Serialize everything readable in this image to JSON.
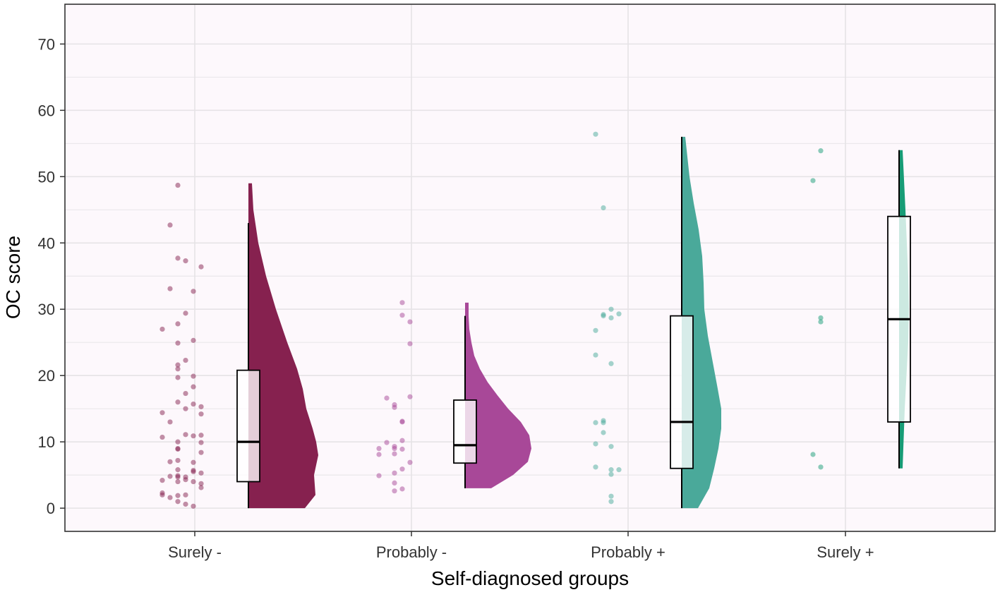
{
  "chart_data": {
    "type": "raincloud",
    "title": "",
    "xlabel": "Self-diagnosed groups",
    "ylabel": "OC score",
    "ylim": [
      -3.5,
      76
    ],
    "yticks": [
      0,
      10,
      20,
      30,
      40,
      50,
      60,
      70
    ],
    "grid": true,
    "categories": [
      "Surely -",
      "Probably -",
      "Probably +",
      "Surely +"
    ],
    "colors": {
      "surely_minus": "#86214f",
      "probably_minus": "#a84898",
      "probably_plus": "#4aa99a",
      "surely_plus": "#179c76",
      "background": "#fdf8fc",
      "grid": "#e6e3e6"
    },
    "groups": [
      {
        "name": "Surely -",
        "color": "#86214f",
        "box": {
          "min": 0,
          "q1": 4,
          "median": 10,
          "q3": 20.8,
          "max": 43
        },
        "violin": {
          "min": 0,
          "max": 49,
          "density": [
            [
              0,
              8
            ],
            [
              2,
              9.5
            ],
            [
              5,
              9.3
            ],
            [
              8,
              9.9
            ],
            [
              10,
              9.6
            ],
            [
              12,
              9.1
            ],
            [
              15,
              8.2
            ],
            [
              18,
              7.7
            ],
            [
              21,
              6.9
            ],
            [
              25,
              5.5
            ],
            [
              30,
              3.9
            ],
            [
              35,
              2.5
            ],
            [
              40,
              1.4
            ],
            [
              45,
              0.7
            ],
            [
              49,
              0.5
            ]
          ]
        },
        "points": [
          [
            2,
            48.7
          ],
          [
            1,
            42.7
          ],
          [
            2,
            37.7
          ],
          [
            3,
            37.3
          ],
          [
            1,
            33.1
          ],
          [
            5,
            36.4
          ],
          [
            4,
            32.7
          ],
          [
            3,
            29.4
          ],
          [
            0,
            27
          ],
          [
            2,
            27.8
          ],
          [
            2,
            24.9
          ],
          [
            4,
            25.3
          ],
          [
            3,
            22.3
          ],
          [
            2,
            21.6
          ],
          [
            2,
            21
          ],
          [
            2,
            19.7
          ],
          [
            4,
            19.9
          ],
          [
            4,
            18.3
          ],
          [
            3,
            17.3
          ],
          [
            2,
            16
          ],
          [
            0,
            14.4
          ],
          [
            1,
            13
          ],
          [
            3,
            15
          ],
          [
            4,
            15.7
          ],
          [
            5,
            15.3
          ],
          [
            5,
            14.2
          ],
          [
            3,
            11.1
          ],
          [
            4,
            10.9
          ],
          [
            5,
            11
          ],
          [
            0,
            10.7
          ],
          [
            2,
            10
          ],
          [
            5,
            9.9
          ],
          [
            2,
            9
          ],
          [
            2,
            8.9
          ],
          [
            5,
            8.4
          ],
          [
            1,
            7
          ],
          [
            2,
            7.2
          ],
          [
            4,
            6.9
          ],
          [
            2,
            5.8
          ],
          [
            4,
            5.7
          ],
          [
            4,
            5.5
          ],
          [
            5,
            5.3
          ],
          [
            0,
            4.2
          ],
          [
            1,
            4.8
          ],
          [
            2,
            4.9
          ],
          [
            2,
            4.7
          ],
          [
            3,
            4.7
          ],
          [
            2,
            4
          ],
          [
            3,
            4.3
          ],
          [
            4,
            4
          ],
          [
            5,
            3.7
          ],
          [
            5,
            3.1
          ],
          [
            0,
            2.3
          ],
          [
            0,
            2
          ],
          [
            2,
            1.9
          ],
          [
            3,
            2
          ],
          [
            1,
            1.6
          ],
          [
            2,
            1
          ],
          [
            3,
            0.6
          ],
          [
            4,
            0.3
          ]
        ]
      },
      {
        "name": "Probably -",
        "color": "#a84898",
        "box": {
          "min": 3,
          "q1": 6.8,
          "median": 9.5,
          "q3": 16.3,
          "max": 29
        },
        "violin": {
          "min": 3,
          "max": 31,
          "density": [
            [
              3,
              3.7
            ],
            [
              5,
              6.8
            ],
            [
              7,
              8.9
            ],
            [
              9,
              9.4
            ],
            [
              11,
              9.1
            ],
            [
              13,
              7.9
            ],
            [
              15,
              6.1
            ],
            [
              17,
              4.6
            ],
            [
              19,
              3.2
            ],
            [
              21,
              2.1
            ],
            [
              23,
              1.3
            ],
            [
              25,
              0.9
            ],
            [
              27,
              0.6
            ],
            [
              29,
              0.5
            ],
            [
              31,
              0.5
            ]
          ]
        },
        "points": [
          [
            3,
            31
          ],
          [
            3,
            29.1
          ],
          [
            4,
            28.1
          ],
          [
            4,
            24.8
          ],
          [
            4,
            16.8
          ],
          [
            1,
            16.6
          ],
          [
            2,
            15.6
          ],
          [
            2,
            15.2
          ],
          [
            3,
            13
          ],
          [
            3,
            13.1
          ],
          [
            3,
            10.2
          ],
          [
            2,
            9.3
          ],
          [
            2,
            9
          ],
          [
            3,
            8.9
          ],
          [
            0,
            9
          ],
          [
            1,
            9.9
          ],
          [
            0,
            8.1
          ],
          [
            2,
            8.2
          ],
          [
            4,
            6.9
          ],
          [
            3,
            5.9
          ],
          [
            2,
            5.3
          ],
          [
            0,
            4.9
          ],
          [
            2,
            3.8
          ],
          [
            2,
            2.6
          ],
          [
            3,
            2.9
          ]
        ]
      },
      {
        "name": "Probably +",
        "color": "#4aa99a",
        "box": {
          "min": 0,
          "q1": 6,
          "median": 13,
          "q3": 29,
          "max": 56
        },
        "violin": {
          "min": 0,
          "max": 56,
          "density": [
            [
              0,
              2.3
            ],
            [
              3,
              3.9
            ],
            [
              6,
              4.6
            ],
            [
              9,
              5.2
            ],
            [
              12,
              5.6
            ],
            [
              15,
              5.6
            ],
            [
              18,
              5.1
            ],
            [
              22,
              4.4
            ],
            [
              26,
              3.7
            ],
            [
              30,
              3.2
            ],
            [
              34,
              3.1
            ],
            [
              38,
              2.9
            ],
            [
              42,
              2.4
            ],
            [
              46,
              1.7
            ],
            [
              50,
              1.1
            ],
            [
              53,
              0.8
            ],
            [
              56,
              0.5
            ]
          ]
        },
        "points": [
          [
            0,
            56.4
          ],
          [
            1,
            45.3
          ],
          [
            1,
            29.2
          ],
          [
            1,
            29
          ],
          [
            2,
            28.7
          ],
          [
            2,
            30
          ],
          [
            3,
            29.3
          ],
          [
            0,
            26.8
          ],
          [
            0,
            23.1
          ],
          [
            2,
            21.8
          ],
          [
            0,
            12.9
          ],
          [
            1,
            13.2
          ],
          [
            1,
            12.9
          ],
          [
            1,
            11.4
          ],
          [
            0,
            9.7
          ],
          [
            2,
            9.3
          ],
          [
            0,
            6.2
          ],
          [
            2,
            5.8
          ],
          [
            3,
            5.8
          ],
          [
            2,
            5.1
          ],
          [
            2,
            1.8
          ],
          [
            2,
            1
          ]
        ]
      },
      {
        "name": "Surely +",
        "color": "#179c76",
        "box": {
          "min": 6,
          "q1": 13,
          "median": 28.5,
          "q3": 44,
          "max": 54
        },
        "violin": {
          "min": 6,
          "max": 54,
          "density": [
            [
              6,
              0.5
            ],
            [
              15,
              0.8
            ],
            [
              25,
              1.3
            ],
            [
              30,
              1.4
            ],
            [
              35,
              1.3
            ],
            [
              45,
              0.9
            ],
            [
              54,
              0.5
            ]
          ]
        },
        "points": [
          [
            1,
            53.9
          ],
          [
            0,
            49.4
          ],
          [
            1,
            28.1
          ],
          [
            1,
            28.7
          ],
          [
            0,
            8.1
          ],
          [
            1,
            6.2
          ]
        ]
      }
    ]
  }
}
